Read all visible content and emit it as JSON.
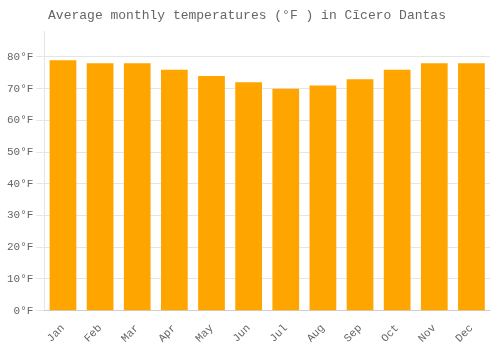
{
  "chart_data": {
    "type": "bar",
    "title": "Average monthly temperatures (°F ) in Cĩcero Dantas",
    "categories": [
      "Jan",
      "Feb",
      "Mar",
      "Apr",
      "May",
      "Jun",
      "Jul",
      "Aug",
      "Sep",
      "Oct",
      "Nov",
      "Dec"
    ],
    "values": [
      79,
      78,
      78,
      76,
      74,
      72,
      70,
      71,
      73,
      76,
      78,
      78
    ],
    "color": "#FFA500",
    "ylim": [
      0,
      88
    ],
    "yticks": [
      {
        "value": 0,
        "label": "0°F"
      },
      {
        "value": 10,
        "label": "10°F"
      },
      {
        "value": 20,
        "label": "20°F"
      },
      {
        "value": 30,
        "label": "30°F"
      },
      {
        "value": 40,
        "label": "40°F"
      },
      {
        "value": 50,
        "label": "50°F"
      },
      {
        "value": 60,
        "label": "60°F"
      },
      {
        "value": 70,
        "label": "70°F"
      },
      {
        "value": 80,
        "label": "80°F"
      }
    ],
    "grid": true
  }
}
